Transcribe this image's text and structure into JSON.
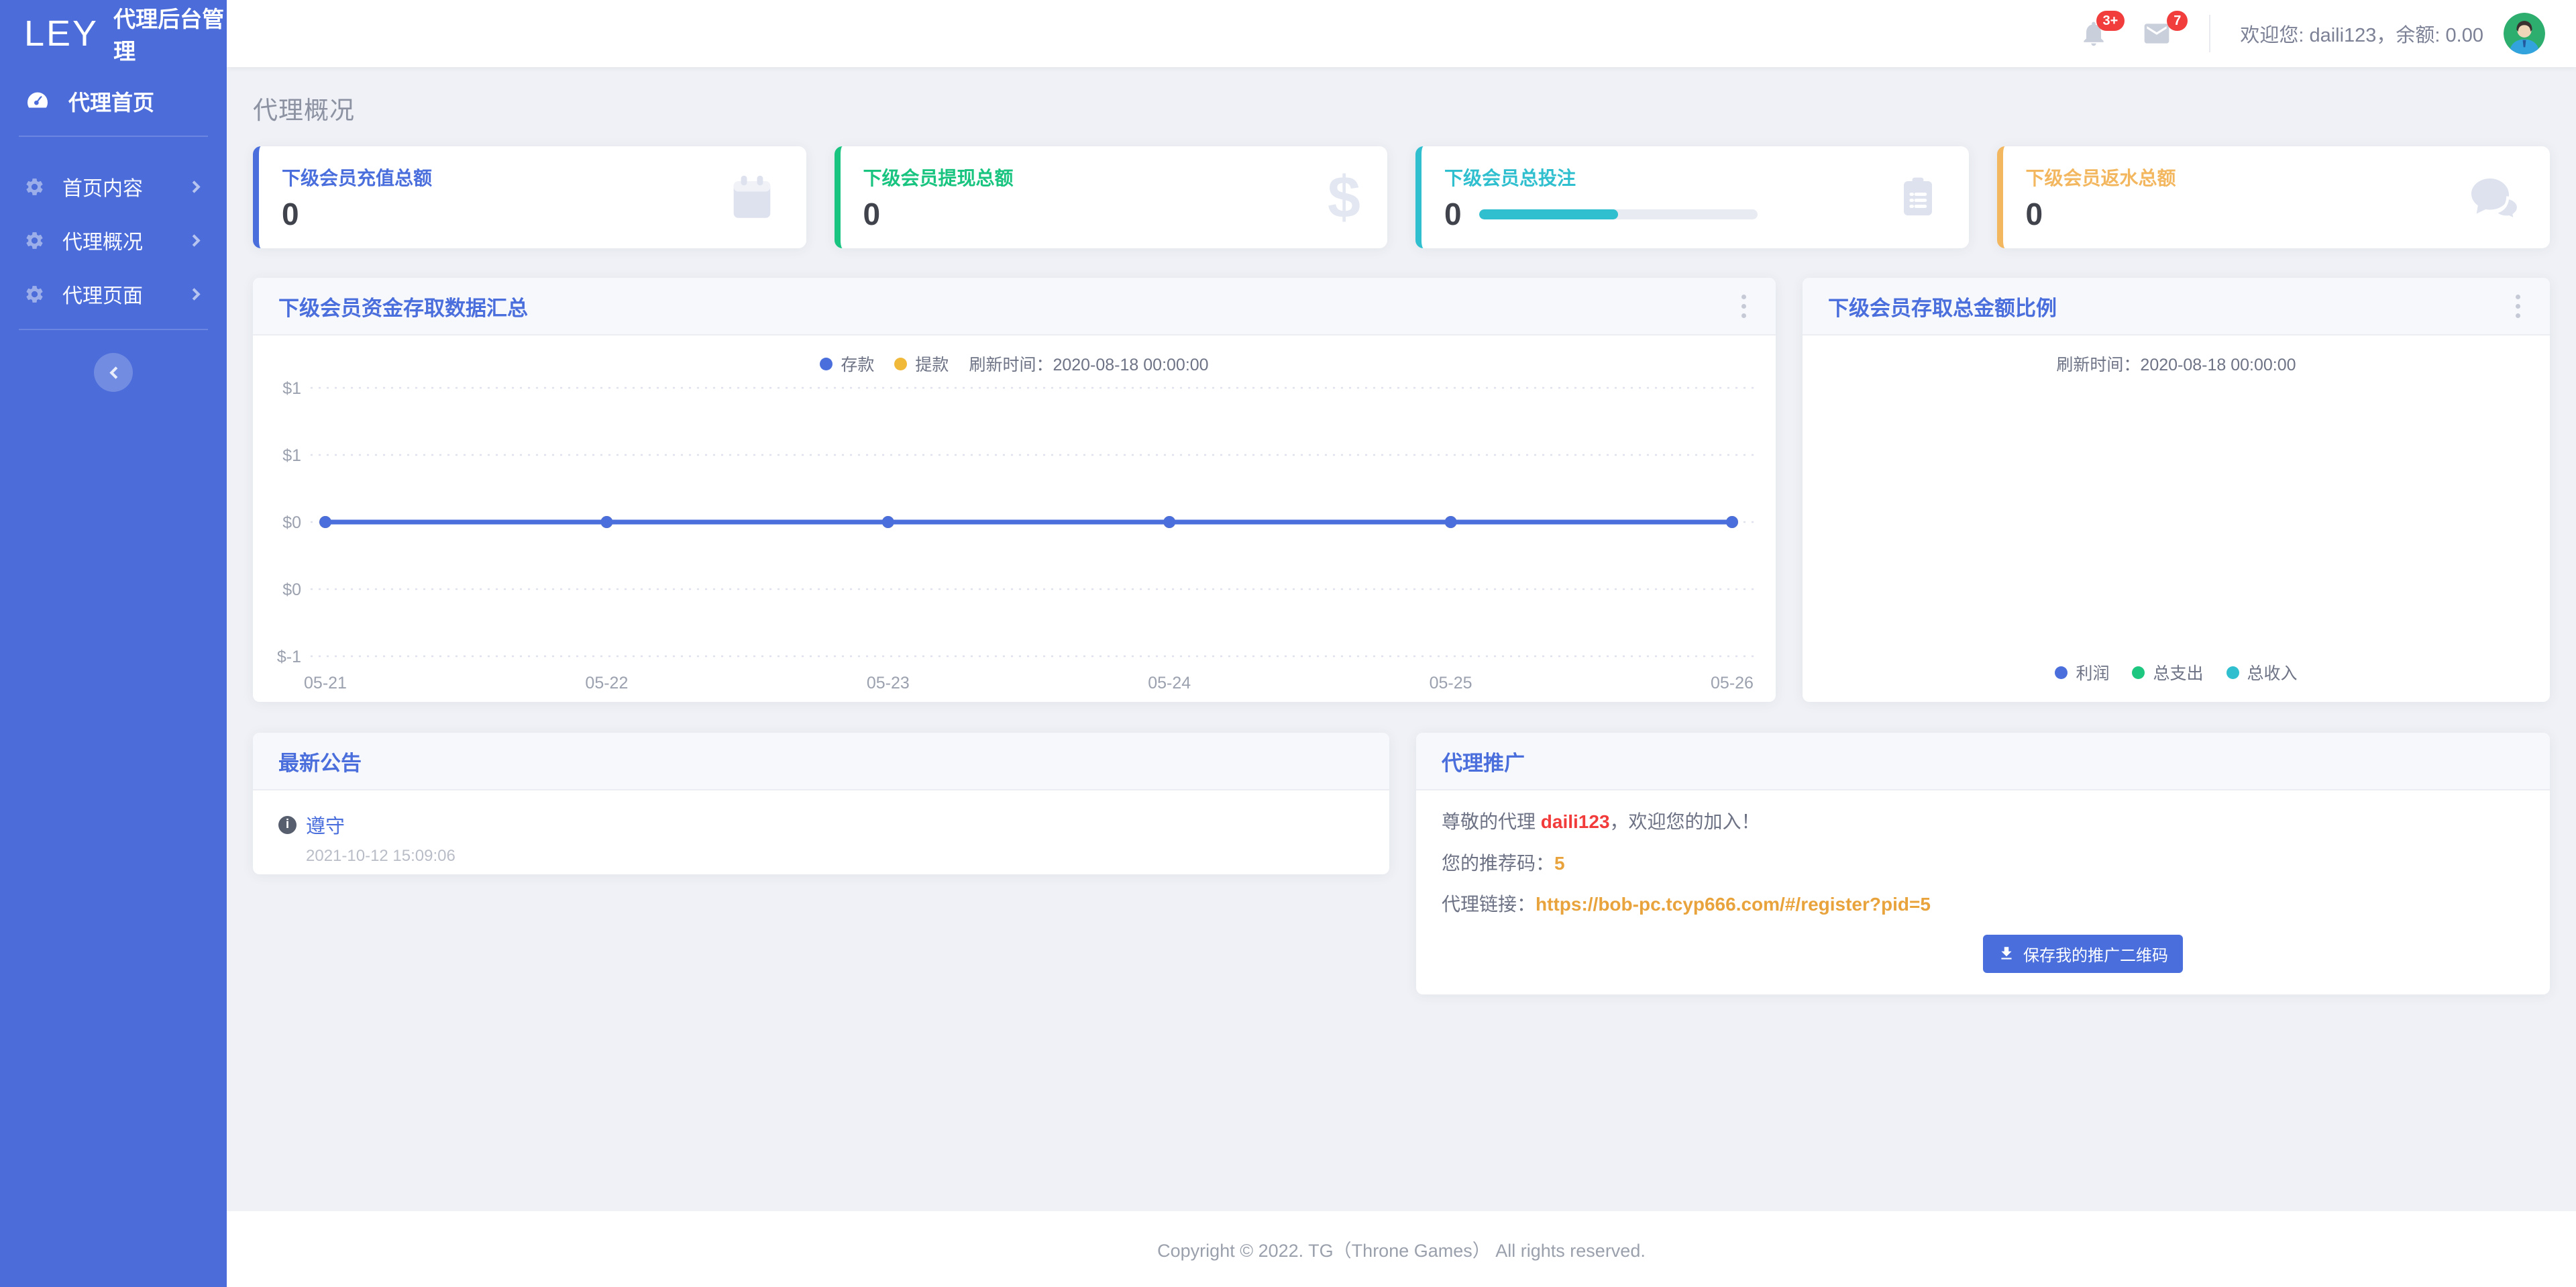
{
  "brand": {
    "logo": "LEY",
    "title": "代理后台管理"
  },
  "sidebar": {
    "home": {
      "label": "代理首页"
    },
    "items": [
      {
        "label": "首页内容"
      },
      {
        "label": "代理概况"
      },
      {
        "label": "代理页面"
      }
    ]
  },
  "header": {
    "bell_badge": "3+",
    "mail_badge": "7",
    "welcome": "欢迎您: daili123，余额: 0.00"
  },
  "page": {
    "title": "代理概况"
  },
  "cards": [
    {
      "label": "下级会员充值总额",
      "value": "0",
      "color": "#4a6edc"
    },
    {
      "label": "下级会员提现总额",
      "value": "0",
      "color": "#18c47f",
      "glyph": "$"
    },
    {
      "label": "下级会员总投注",
      "value": "0",
      "color": "#2fbfcf",
      "progress": 50
    },
    {
      "label": "下级会员返水总额",
      "value": "0",
      "color": "#f3b760"
    }
  ],
  "chart_panel": {
    "title": "下级会员资金存取数据汇总",
    "refresh": "刷新时间：2020-08-18 00:00:00"
  },
  "chart_data": {
    "type": "line",
    "title": "下级会员资金存取数据汇总",
    "x": [
      "05-21",
      "05-22",
      "05-23",
      "05-24",
      "05-25",
      "05-26"
    ],
    "series": [
      {
        "name": "存款",
        "color": "#4a6edc",
        "values": [
          0,
          0,
          0,
          0,
          0,
          0
        ]
      },
      {
        "name": "提款",
        "color": "#f0b93a",
        "values": [
          0,
          0,
          0,
          0,
          0,
          0
        ]
      }
    ],
    "y_tick_labels": [
      "$1",
      "$1",
      "$0",
      "$0",
      "$-1"
    ],
    "ylim": [
      -1,
      1
    ],
    "grid": "dotted-horizontal",
    "legend_position": "top-center"
  },
  "ratio_panel": {
    "title": "下级会员存取总金额比例",
    "refresh": "刷新时间：2020-08-18 00:00:00",
    "legend": [
      {
        "name": "利润",
        "color": "#4a6edc"
      },
      {
        "name": "总支出",
        "color": "#1ec77f"
      },
      {
        "name": "总收入",
        "color": "#2fbfcf"
      }
    ]
  },
  "notice_panel": {
    "title": "最新公告",
    "items": [
      {
        "title": "遵守",
        "time": "2021-10-12 15:09:06"
      }
    ]
  },
  "promo_panel": {
    "title": "代理推广",
    "greeting_prefix": "尊敬的代理 ",
    "agent_name": "daili123",
    "greeting_suffix": "，欢迎您的加入！",
    "code_label": "您的推荐码：",
    "code": "5",
    "link_label": "代理链接：",
    "link": "https://bob-pc.tcyp666.com/#/register?pid=5",
    "button": "保存我的推广二维码"
  },
  "footer": {
    "text": "Copyright © 2022. TG（Throne Games） All rights reserved."
  }
}
